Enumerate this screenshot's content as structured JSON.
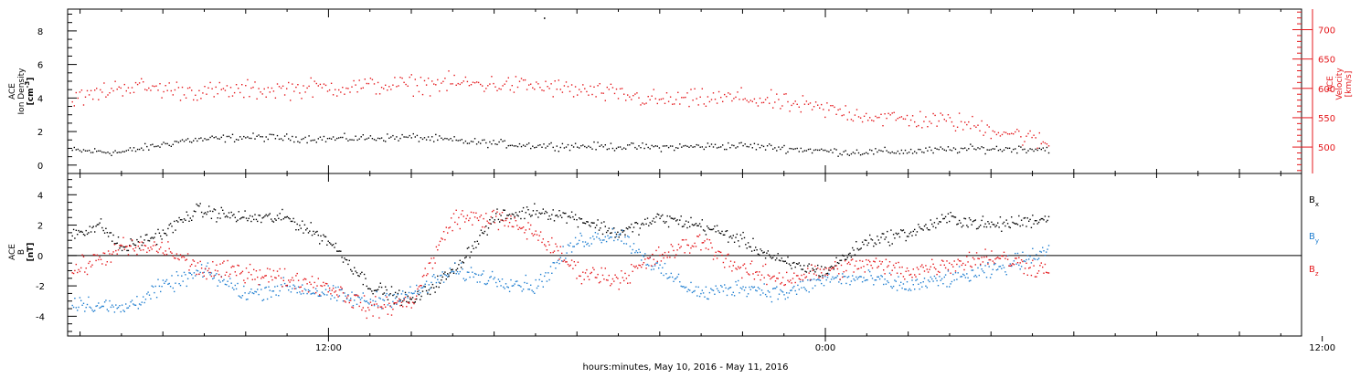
{
  "chart_data": [
    {
      "type": "scatter",
      "panel": "top",
      "colors": {
        "density": "#000000",
        "velocity": "#e4181c"
      },
      "x_unit": "hours since 00:00 May 10, 2016",
      "xlim": [
        5.7,
        35.5
      ],
      "x_major_ticks": [
        {
          "x": 12,
          "label": "12:00"
        },
        {
          "x": 24,
          "label": "0:00"
        },
        {
          "x": 36,
          "label": "12:00"
        }
      ],
      "left_axis": {
        "title_line1": "ACE",
        "title_line2": "Ion Density",
        "unit_base": "[cm",
        "unit_sup": "-3",
        "unit_end": "]",
        "ylim": [
          -0.5,
          9.3
        ],
        "ticks": [
          {
            "v": 0,
            "label": "0"
          },
          {
            "v": 2,
            "label": "2"
          },
          {
            "v": 4,
            "label": "4"
          },
          {
            "v": 6,
            "label": "6"
          },
          {
            "v": 8,
            "label": "8"
          }
        ]
      },
      "right_axis": {
        "title_line1": "ACE",
        "title_line2": "Velocity",
        "unit": "[km/s]",
        "ylim": [
          455,
          735
        ],
        "ticks": [
          {
            "v": 500,
            "label": "500"
          },
          {
            "v": 550,
            "label": "550"
          },
          {
            "v": 600,
            "label": "600"
          },
          {
            "v": 650,
            "label": "650"
          },
          {
            "v": 700,
            "label": "700"
          }
        ]
      },
      "series": [
        {
          "key": "density",
          "axis": "left",
          "t_end": 29.4,
          "trend": [
            [
              5.8,
              0.9
            ],
            [
              7,
              0.8
            ],
            [
              8.5,
              1.5
            ],
            [
              10,
              1.7
            ],
            [
              12,
              1.6
            ],
            [
              14,
              1.7
            ],
            [
              15.5,
              1.4
            ],
            [
              17,
              1.2
            ],
            [
              20,
              1.1
            ],
            [
              22,
              1.2
            ],
            [
              23.2,
              1.0
            ],
            [
              24.5,
              0.8
            ],
            [
              26,
              0.85
            ],
            [
              27.5,
              1.0
            ],
            [
              29.4,
              1.0
            ]
          ],
          "noise": 0.25,
          "spike": {
            "x": 17.2,
            "y": 8.8
          }
        },
        {
          "key": "velocity",
          "axis": "right",
          "t_end": 29.4,
          "trend": [
            [
              5.8,
              580
            ],
            [
              7,
              605
            ],
            [
              9,
              595
            ],
            [
              11,
              600
            ],
            [
              13,
              605
            ],
            [
              15,
              610
            ],
            [
              17,
              605
            ],
            [
              19,
              590
            ],
            [
              20,
              580
            ],
            [
              22,
              585
            ],
            [
              24,
              565
            ],
            [
              25.5,
              550
            ],
            [
              27,
              545
            ],
            [
              28.5,
              525
            ],
            [
              29.4,
              505
            ]
          ],
          "noise": 18
        }
      ]
    },
    {
      "type": "scatter",
      "panel": "bottom",
      "colors": {
        "bx": "#000000",
        "by": "#1f7ed0",
        "bz": "#e4181c"
      },
      "xlim": [
        5.7,
        35.5
      ],
      "left_axis": {
        "title_line1": "ACE",
        "title_line2": "B",
        "unit": "[nT]",
        "ylim": [
          -5.3,
          5.4
        ],
        "ticks": [
          {
            "v": -4,
            "label": "-4"
          },
          {
            "v": -2,
            "label": "-2"
          },
          {
            "v": 0,
            "label": "0"
          },
          {
            "v": 2,
            "label": "2"
          },
          {
            "v": 4,
            "label": "4"
          }
        ],
        "zero_line": true
      },
      "legend": [
        {
          "key": "bx",
          "base": "B",
          "sub": "x"
        },
        {
          "key": "by",
          "base": "B",
          "sub": "y"
        },
        {
          "key": "bz",
          "base": "B",
          "sub": "z"
        }
      ],
      "series": [
        {
          "key": "bx",
          "t_end": 29.4,
          "trend": [
            [
              5.8,
              1.5
            ],
            [
              6.5,
              2.0
            ],
            [
              7,
              0.5
            ],
            [
              8,
              1.5
            ],
            [
              8.8,
              3.0
            ],
            [
              10,
              2.5
            ],
            [
              11,
              2.5
            ],
            [
              12,
              1.0
            ],
            [
              13,
              -2.0
            ],
            [
              14,
              -3.0
            ],
            [
              15,
              -1.0
            ],
            [
              16,
              2.5
            ],
            [
              17,
              3.0
            ],
            [
              18,
              2.5
            ],
            [
              19,
              1.5
            ],
            [
              20,
              2.5
            ],
            [
              21,
              2.0
            ],
            [
              22,
              1.0
            ],
            [
              23,
              -0.5
            ],
            [
              24,
              -1.0
            ],
            [
              25,
              1.0
            ],
            [
              26,
              1.5
            ],
            [
              27,
              2.5
            ],
            [
              28,
              2.0
            ],
            [
              29.4,
              2.5
            ]
          ],
          "noise": 0.5
        },
        {
          "key": "by",
          "t_end": 29.4,
          "trend": [
            [
              5.8,
              -3.0
            ],
            [
              7,
              -3.5
            ],
            [
              8,
              -2.0
            ],
            [
              9,
              -1.0
            ],
            [
              10,
              -2.5
            ],
            [
              11,
              -2.0
            ],
            [
              12,
              -2.5
            ],
            [
              13,
              -3.0
            ],
            [
              14,
              -2.5
            ],
            [
              15,
              -1.0
            ],
            [
              16,
              -1.5
            ],
            [
              17,
              -2.0
            ],
            [
              18,
              1.0
            ],
            [
              19,
              1.5
            ],
            [
              20,
              -1.0
            ],
            [
              21,
              -2.5
            ],
            [
              22,
              -2.0
            ],
            [
              23,
              -2.5
            ],
            [
              24,
              -1.5
            ],
            [
              25,
              -1.5
            ],
            [
              26,
              -2.0
            ],
            [
              27,
              -1.5
            ],
            [
              28,
              -1.0
            ],
            [
              29.4,
              0.5
            ]
          ],
          "noise": 0.6
        },
        {
          "key": "bz",
          "t_end": 29.4,
          "trend": [
            [
              5.8,
              -1.0
            ],
            [
              7,
              0.5
            ],
            [
              8,
              0.5
            ],
            [
              9,
              -1.0
            ],
            [
              10,
              -1.0
            ],
            [
              11,
              -1.5
            ],
            [
              12,
              -2.0
            ],
            [
              13,
              -3.5
            ],
            [
              14,
              -3.0
            ],
            [
              15,
              2.5
            ],
            [
              16,
              2.5
            ],
            [
              17,
              1.5
            ],
            [
              18,
              -1.0
            ],
            [
              19,
              -1.5
            ],
            [
              20,
              0.0
            ],
            [
              21,
              1.0
            ],
            [
              22,
              -1.0
            ],
            [
              23,
              -1.5
            ],
            [
              24,
              -1.0
            ],
            [
              25,
              -0.5
            ],
            [
              26,
              -1.0
            ],
            [
              27,
              -0.5
            ],
            [
              28,
              0.0
            ],
            [
              29.4,
              -1.0
            ]
          ],
          "noise": 0.7
        }
      ]
    }
  ],
  "footer": "hours:minutes, May 10, 2016 - May 11, 2016"
}
